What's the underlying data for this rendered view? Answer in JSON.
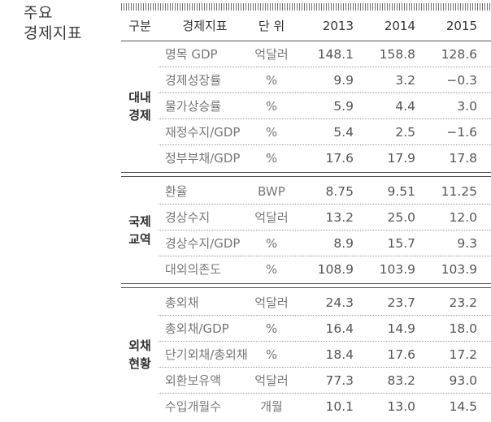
{
  "side_title": "주요\n경제지표",
  "headers": {
    "category": "구분",
    "indicator": "경제지표",
    "unit": "단 위",
    "years": [
      "2013",
      "2014",
      "2015"
    ]
  },
  "sections": [
    {
      "category": "대내\n경제",
      "rows": [
        {
          "indicator": "명목 GDP",
          "unit": "억달러",
          "values": [
            "148.1",
            "158.8",
            "128.6"
          ]
        },
        {
          "indicator": "경제성장률",
          "unit": "%",
          "values": [
            "9.9",
            "3.2",
            "−0.3"
          ]
        },
        {
          "indicator": "물가상승률",
          "unit": "%",
          "values": [
            "5.9",
            "4.4",
            "3.0"
          ]
        },
        {
          "indicator": "재정수지/GDP",
          "unit": "%",
          "values": [
            "5.4",
            "2.5",
            "−1.6"
          ]
        },
        {
          "indicator": "정부부채/GDP",
          "unit": "%",
          "values": [
            "17.6",
            "17.9",
            "17.8"
          ]
        }
      ]
    },
    {
      "category": "국제\n교역",
      "rows": [
        {
          "indicator": "환율",
          "unit": "BWP",
          "values": [
            "8.75",
            "9.51",
            "11.25"
          ]
        },
        {
          "indicator": "경상수지",
          "unit": "억달러",
          "values": [
            "13.2",
            "25.0",
            "12.0"
          ]
        },
        {
          "indicator": "경상수지/GDP",
          "unit": "%",
          "values": [
            "8.9",
            "15.7",
            "9.3"
          ]
        },
        {
          "indicator": "대외의존도",
          "unit": "%",
          "values": [
            "108.9",
            "103.9",
            "103.9"
          ]
        }
      ]
    },
    {
      "category": "외채\n현황",
      "rows": [
        {
          "indicator": "총외채",
          "unit": "억달러",
          "values": [
            "24.3",
            "23.7",
            "23.2"
          ]
        },
        {
          "indicator": "총외채/GDP",
          "unit": "%",
          "values": [
            "16.4",
            "14.9",
            "18.0"
          ]
        },
        {
          "indicator": "단기외채/총외채",
          "unit": "%",
          "values": [
            "18.4",
            "17.6",
            "17.2"
          ]
        },
        {
          "indicator": "외환보유액",
          "unit": "억달러",
          "values": [
            "77.3",
            "83.2",
            "93.0"
          ]
        },
        {
          "indicator": "수입개월수",
          "unit": "개월",
          "values": [
            "10.1",
            "13.0",
            "14.5"
          ]
        }
      ]
    }
  ]
}
